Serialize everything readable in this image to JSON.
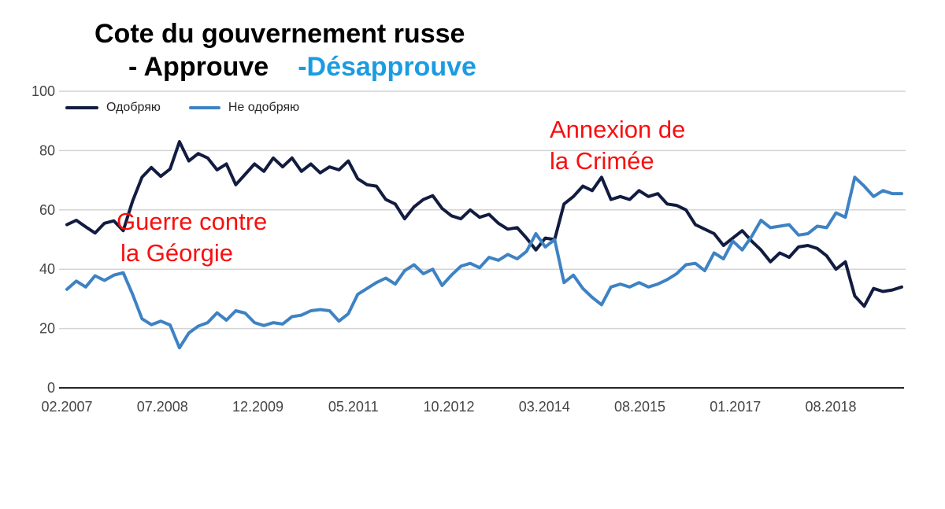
{
  "header": {
    "title": "Cote du gouvernement russe",
    "subtitle_approve": "- Approuve",
    "subtitle_disapprove": "-Désapprouve"
  },
  "annotations": {
    "georgia": [
      "Guerre contre",
      "la Géorgie"
    ],
    "crimea": [
      "Annexion de",
      "la Crimée"
    ]
  },
  "colors": {
    "title_text": "#000000",
    "subtitle_blue": "#1b9ce1",
    "annotation_red": "#f90f0f",
    "grid": "#d4d4d4",
    "axis": "#262626",
    "tick_text": "#454545",
    "legend_text": "#262626"
  },
  "chart_data": {
    "type": "line",
    "title": "Cote du gouvernement russe",
    "xlabel": "",
    "ylabel": "",
    "ylim": [
      0,
      100
    ],
    "y_ticks": [
      0,
      20,
      40,
      60,
      80,
      100
    ],
    "x_tick_labels": [
      "02.2007",
      "07.2008",
      "12.2009",
      "05.2011",
      "10.2012",
      "03.2014",
      "08.2015",
      "01.2017",
      "08.2018"
    ],
    "grid": "horizontal",
    "legend_position": "top-left-inside",
    "annotations": [
      {
        "text": "Guerre contre la Géorgie",
        "near_x": "07.2008"
      },
      {
        "text": "Annexion de la Crimée",
        "near_x": "03.2014"
      }
    ],
    "series": [
      {
        "name": "Одобряю",
        "color": "#121c40",
        "values": [
          55,
          56.5,
          54.3,
          52.2,
          55.5,
          56.3,
          53,
          63,
          71,
          74.3,
          71.3,
          73.8,
          83,
          76.5,
          79,
          77.5,
          73.5,
          75.5,
          68.5,
          72,
          75.5,
          73,
          77.5,
          74.5,
          77.5,
          73,
          75.5,
          72.5,
          74.5,
          73.5,
          76.5,
          70.5,
          68.5,
          68,
          63.5,
          62,
          57,
          61,
          63.5,
          64.8,
          60.5,
          58,
          57,
          60,
          57.5,
          58.5,
          55.5,
          53.5,
          54,
          50.5,
          46.5,
          50.5,
          50,
          62,
          64.5,
          68,
          66.5,
          71,
          63.5,
          64.5,
          63.5,
          66.5,
          64.5,
          65.5,
          62,
          61.5,
          60,
          55,
          53.5,
          52,
          48,
          50.5,
          53,
          49.5,
          46.5,
          42.5,
          45.5,
          44,
          47.5,
          48,
          47,
          44.5,
          40,
          42.5,
          31,
          27.5,
          33.5,
          32.5,
          33,
          34
        ]
      },
      {
        "name": "Не одобряю",
        "color": "#3e82c4",
        "values": [
          33.2,
          36,
          34,
          37.8,
          36.2,
          38,
          38.8,
          31.5,
          23.3,
          21.3,
          22.5,
          21.2,
          13.5,
          18.5,
          20.8,
          22,
          25.3,
          22.8,
          26,
          25.2,
          22,
          21,
          22,
          21.5,
          24,
          24.5,
          26,
          26.4,
          26,
          22.5,
          25,
          31.5,
          33.5,
          35.5,
          37,
          35,
          39.5,
          41.5,
          38.5,
          40,
          34.5,
          38,
          41,
          42,
          40.5,
          44,
          43,
          45,
          43.5,
          46,
          52,
          47.5,
          50,
          35.5,
          38,
          33.5,
          30.5,
          28,
          34,
          35,
          34,
          35.5,
          34,
          35,
          36.5,
          38.5,
          41.5,
          42,
          39.5,
          45.5,
          43.5,
          49.5,
          46.5,
          51,
          56.5,
          54,
          54.5,
          55,
          51.5,
          52,
          54.5,
          54,
          59,
          57.5,
          71,
          68,
          64.5,
          66.5,
          65.5,
          65.5
        ]
      }
    ]
  }
}
